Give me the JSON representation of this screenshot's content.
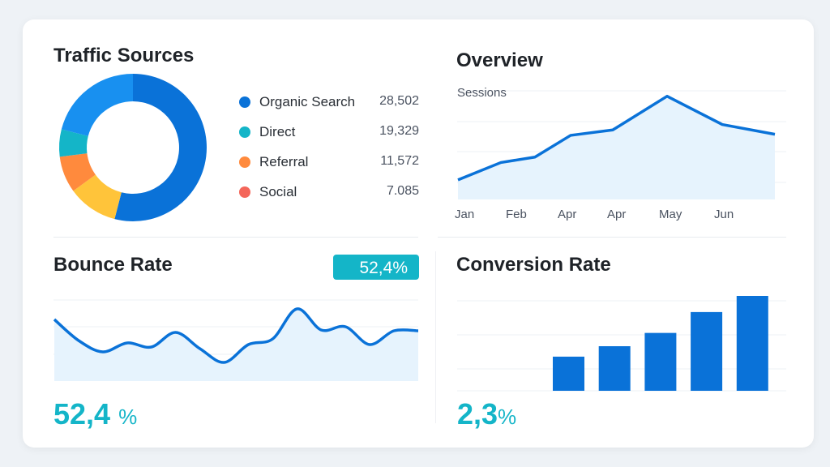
{
  "traffic": {
    "title": "Traffic Sources",
    "items": [
      {
        "label": "Organic Search",
        "value": "28,502",
        "color": "#0a72d8"
      },
      {
        "label": "Direct",
        "value": "19,329",
        "color": "#14b5c8"
      },
      {
        "label": "Referral",
        "value": "11,572",
        "color": "#ff8a3d"
      },
      {
        "label": "Social",
        "value": "7.085",
        "color": "#f4665a"
      }
    ]
  },
  "overview": {
    "title": "Overview",
    "label": "Sessions",
    "months": [
      "Jan",
      "Feb",
      "Apr",
      "Apr",
      "May",
      "Jun"
    ]
  },
  "bounce": {
    "title": "Bounce Rate",
    "badge": "52,4%",
    "value": "52,4",
    "unit": "%"
  },
  "conversion": {
    "title": "Conversion Rate",
    "value": "2,3",
    "unit": "%"
  },
  "chart_data": [
    {
      "type": "pie",
      "name": "traffic-donut",
      "slices": [
        {
          "color": "#0a72d8",
          "value": 54
        },
        {
          "color": "#ffc43a",
          "value": 11
        },
        {
          "color": "#ff8a3d",
          "value": 8
        },
        {
          "color": "#14b5c8",
          "value": 6
        },
        {
          "color": "#1890f0",
          "value": 21
        }
      ]
    },
    {
      "type": "area",
      "name": "sessions",
      "ylabel": "Sessions",
      "ylim": [
        0,
        100
      ],
      "values": [
        18,
        34,
        39,
        59,
        64,
        95,
        69,
        60
      ]
    },
    {
      "type": "area",
      "name": "bounce-rate",
      "ylim": [
        0,
        100
      ],
      "values": [
        76,
        50,
        36,
        47,
        42,
        60,
        40,
        23,
        45,
        52,
        89,
        63,
        67,
        45,
        62,
        62
      ]
    },
    {
      "type": "bar",
      "name": "conversion-rate",
      "ylim": [
        0,
        100
      ],
      "values": [
        36,
        47,
        61,
        83,
        100
      ]
    }
  ]
}
